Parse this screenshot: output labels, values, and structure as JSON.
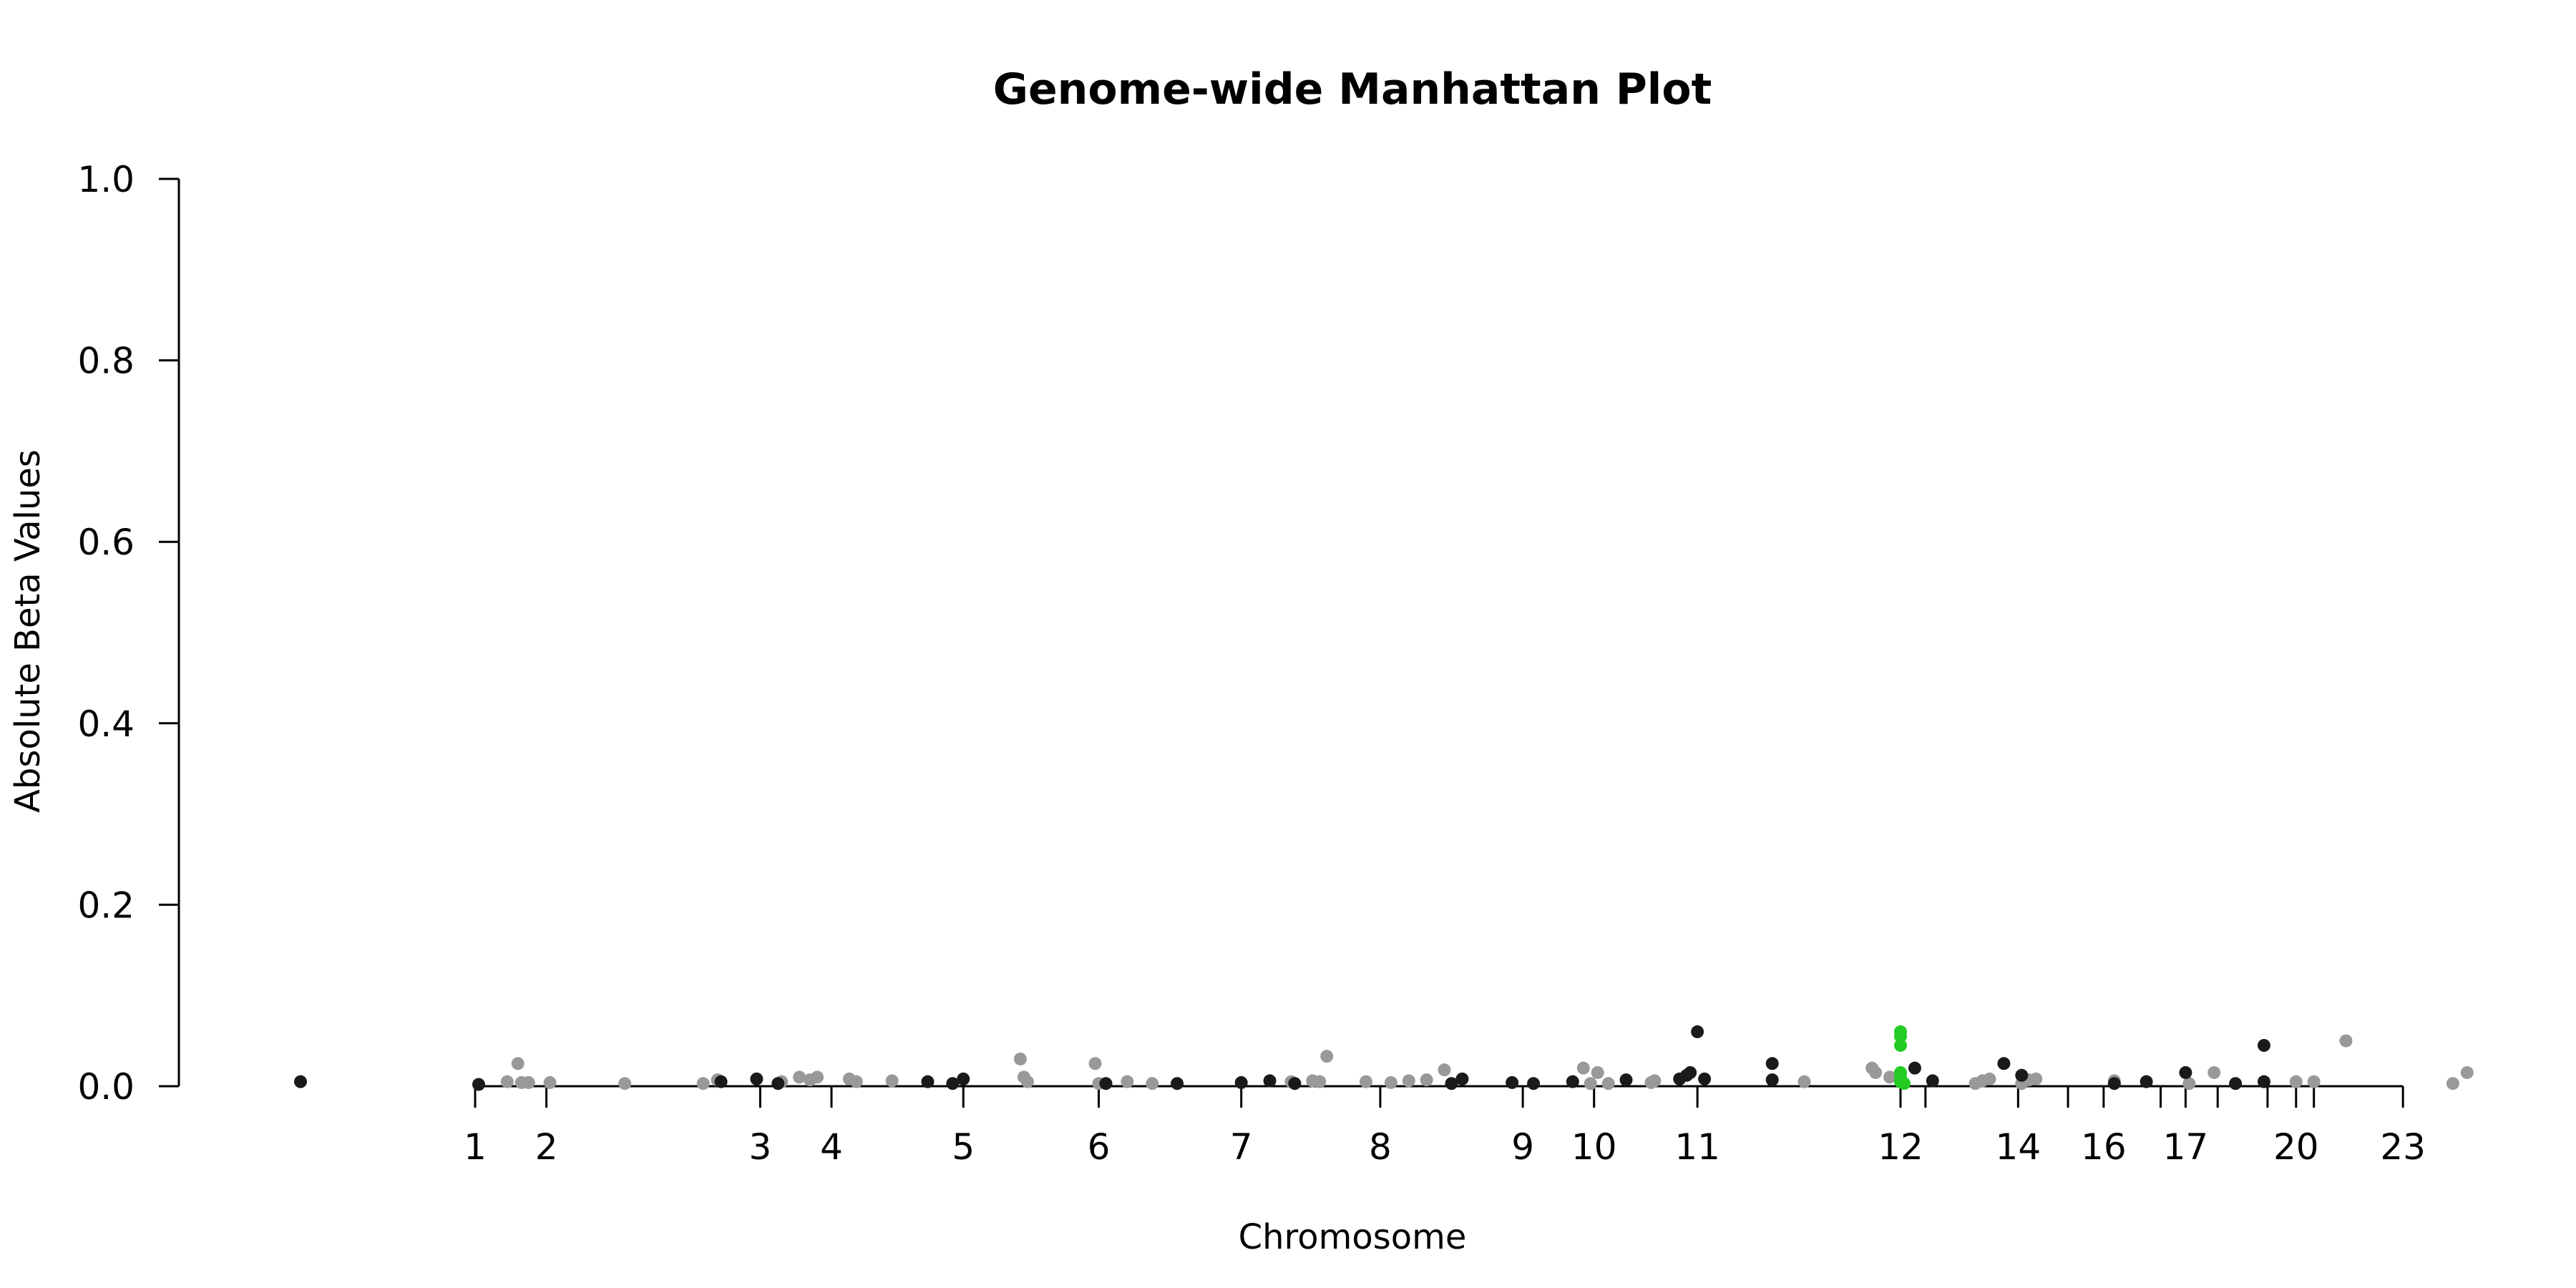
{
  "chart_data": {
    "type": "scatter",
    "title": "Genome-wide Manhattan Plot",
    "xlabel": "Chromosome",
    "ylabel": "Absolute Beta Values",
    "ylim": [
      0,
      1.0
    ],
    "y_ticks": [
      "0.0",
      "0.2",
      "0.4",
      "0.6",
      "0.8",
      "1.0"
    ],
    "grid": false,
    "legend": "none",
    "colors": {
      "odd_chromosomes": "#1a1a1a",
      "even_chromosomes": "#999999",
      "highlight": "#22cc22",
      "axis": "#000000"
    },
    "x_ticks": [
      {
        "label": "1",
        "pos": 1.0
      },
      {
        "label": "2",
        "pos": 2.0
      },
      {
        "label": "3",
        "pos": 5.0
      },
      {
        "label": "4",
        "pos": 6.0
      },
      {
        "label": "5",
        "pos": 7.85
      },
      {
        "label": "6",
        "pos": 9.75
      },
      {
        "label": "7",
        "pos": 11.75
      },
      {
        "label": "8",
        "pos": 13.7
      },
      {
        "label": "9",
        "pos": 15.7
      },
      {
        "label": "10",
        "pos": 16.7
      },
      {
        "label": "11",
        "pos": 18.15
      },
      {
        "label": "12",
        "pos": 21.0
      },
      {
        "label": "14",
        "pos": 22.65
      },
      {
        "label": "16",
        "pos": 23.85
      },
      {
        "label": "17",
        "pos": 25.0
      },
      {
        "label": "20",
        "pos": 26.55
      },
      {
        "label": "23",
        "pos": 28.05
      }
    ],
    "x_minor_ticks": [
      21.35,
      23.35,
      24.65,
      25.45,
      26.15,
      26.8
    ],
    "xlim_ticks": [
      1.0,
      28.05
    ],
    "points_black": [
      [
        -1.45,
        0.005
      ],
      [
        1.05,
        0.002
      ],
      [
        4.45,
        0.005
      ],
      [
        4.95,
        0.008
      ],
      [
        5.25,
        0.003
      ],
      [
        7.35,
        0.005
      ],
      [
        7.7,
        0.003
      ],
      [
        7.85,
        0.008
      ],
      [
        9.85,
        0.003
      ],
      [
        10.85,
        0.003
      ],
      [
        11.75,
        0.004
      ],
      [
        12.15,
        0.006
      ],
      [
        12.5,
        0.003
      ],
      [
        14.7,
        0.003
      ],
      [
        14.85,
        0.008
      ],
      [
        15.55,
        0.004
      ],
      [
        15.85,
        0.003
      ],
      [
        16.4,
        0.005
      ],
      [
        17.15,
        0.007
      ],
      [
        17.9,
        0.008
      ],
      [
        18.0,
        0.012
      ],
      [
        18.05,
        0.015
      ],
      [
        18.15,
        0.06
      ],
      [
        18.25,
        0.008
      ],
      [
        19.2,
        0.007
      ],
      [
        19.2,
        0.025
      ],
      [
        21.2,
        0.02
      ],
      [
        21.45,
        0.006
      ],
      [
        22.45,
        0.025
      ],
      [
        22.7,
        0.012
      ],
      [
        24.0,
        0.003
      ],
      [
        24.45,
        0.005
      ],
      [
        25.0,
        0.015
      ],
      [
        25.7,
        0.003
      ],
      [
        26.1,
        0.045
      ],
      [
        26.1,
        0.005
      ]
    ],
    "points_gray": [
      [
        1.45,
        0.005
      ],
      [
        1.6,
        0.025
      ],
      [
        1.65,
        0.004
      ],
      [
        1.75,
        0.004
      ],
      [
        2.05,
        0.004
      ],
      [
        3.1,
        0.003
      ],
      [
        4.2,
        0.003
      ],
      [
        4.4,
        0.007
      ],
      [
        5.3,
        0.005
      ],
      [
        5.55,
        0.01
      ],
      [
        5.7,
        0.007
      ],
      [
        5.8,
        0.01
      ],
      [
        6.25,
        0.008
      ],
      [
        6.35,
        0.005
      ],
      [
        6.85,
        0.006
      ],
      [
        8.65,
        0.03
      ],
      [
        8.7,
        0.01
      ],
      [
        8.75,
        0.005
      ],
      [
        9.7,
        0.025
      ],
      [
        9.75,
        0.003
      ],
      [
        10.15,
        0.005
      ],
      [
        10.5,
        0.003
      ],
      [
        12.45,
        0.005
      ],
      [
        12.75,
        0.006
      ],
      [
        12.85,
        0.005
      ],
      [
        12.95,
        0.033
      ],
      [
        13.5,
        0.005
      ],
      [
        13.85,
        0.004
      ],
      [
        14.1,
        0.006
      ],
      [
        14.35,
        0.007
      ],
      [
        14.6,
        0.018
      ],
      [
        16.55,
        0.02
      ],
      [
        16.75,
        0.015
      ],
      [
        16.65,
        0.003
      ],
      [
        16.9,
        0.003
      ],
      [
        17.5,
        0.004
      ],
      [
        17.55,
        0.006
      ],
      [
        19.65,
        0.005
      ],
      [
        20.6,
        0.02
      ],
      [
        20.65,
        0.015
      ],
      [
        20.85,
        0.01
      ],
      [
        22.05,
        0.003
      ],
      [
        22.15,
        0.006
      ],
      [
        22.25,
        0.008
      ],
      [
        22.7,
        0.003
      ],
      [
        22.8,
        0.007
      ],
      [
        22.9,
        0.008
      ],
      [
        24.0,
        0.006
      ],
      [
        25.05,
        0.003
      ],
      [
        25.4,
        0.015
      ],
      [
        26.55,
        0.005
      ],
      [
        26.8,
        0.005
      ],
      [
        27.25,
        0.05
      ],
      [
        28.75,
        0.003
      ],
      [
        28.95,
        0.015
      ]
    ],
    "points_highlight": [
      [
        21.0,
        0.06
      ],
      [
        21.0,
        0.055
      ],
      [
        21.0,
        0.045
      ],
      [
        21.0,
        0.015
      ],
      [
        21.0,
        0.01
      ],
      [
        21.0,
        0.005
      ],
      [
        21.05,
        0.003
      ]
    ]
  }
}
